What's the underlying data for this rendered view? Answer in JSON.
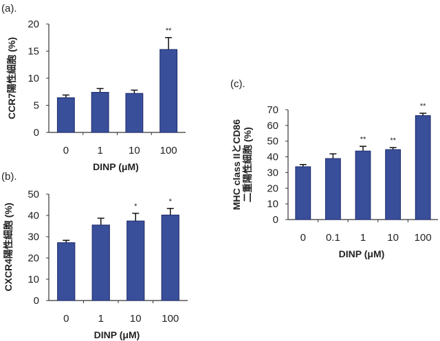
{
  "colors": {
    "bar": "#3a4f9a",
    "bar_edge": "#1d2a6b",
    "axis": "#333333"
  },
  "chart_data": [
    {
      "type": "bar",
      "panel_label": "(a).",
      "title": "",
      "xlabel": "DINP (μM)",
      "ylabel": "CCR7陽性細胞 (%)",
      "ylabel_lines": [
        "CCR7陽性細胞 (%)"
      ],
      "categories": [
        "0",
        "1",
        "10",
        "100"
      ],
      "values": [
        6.4,
        7.4,
        7.2,
        15.3
      ],
      "errors": [
        0.5,
        0.7,
        0.6,
        2.2
      ],
      "significance": [
        "",
        "",
        "",
        "**"
      ],
      "ylim": [
        0,
        20
      ],
      "yticks": [
        0,
        5,
        10,
        15,
        20
      ],
      "grid": false
    },
    {
      "type": "bar",
      "panel_label": "(b).",
      "title": "",
      "xlabel": "DINP (μM)",
      "ylabel": "CXCR4陽性細胞 (%)",
      "ylabel_lines": [
        "CXCR4陽性細胞 (%)"
      ],
      "categories": [
        "0",
        "1",
        "10",
        "100"
      ],
      "values": [
        27.2,
        35.5,
        37.4,
        40.2
      ],
      "errors": [
        1.1,
        3.2,
        3.6,
        3.1
      ],
      "significance": [
        "",
        "",
        "*",
        "*"
      ],
      "ylim": [
        0,
        50
      ],
      "yticks": [
        0,
        10,
        20,
        30,
        40,
        50
      ],
      "grid": false
    },
    {
      "type": "bar",
      "panel_label": "(c).",
      "title": "",
      "xlabel": "DINP (μM)",
      "ylabel": "MHC class IIとCD86 二重陽性細胞 (%)",
      "ylabel_lines": [
        "MHC class IIとCD86",
        "二重陽性細胞 (%)"
      ],
      "categories": [
        "0",
        "0.1",
        "1",
        "10",
        "100"
      ],
      "values": [
        33.7,
        38.9,
        43.7,
        44.6,
        66.3
      ],
      "errors": [
        1.4,
        3.0,
        3.0,
        1.3,
        1.5
      ],
      "significance": [
        "",
        "",
        "**",
        "**",
        "**"
      ],
      "ylim": [
        0,
        70
      ],
      "yticks": [
        0,
        10,
        20,
        30,
        40,
        50,
        60,
        70
      ],
      "grid": false
    }
  ]
}
